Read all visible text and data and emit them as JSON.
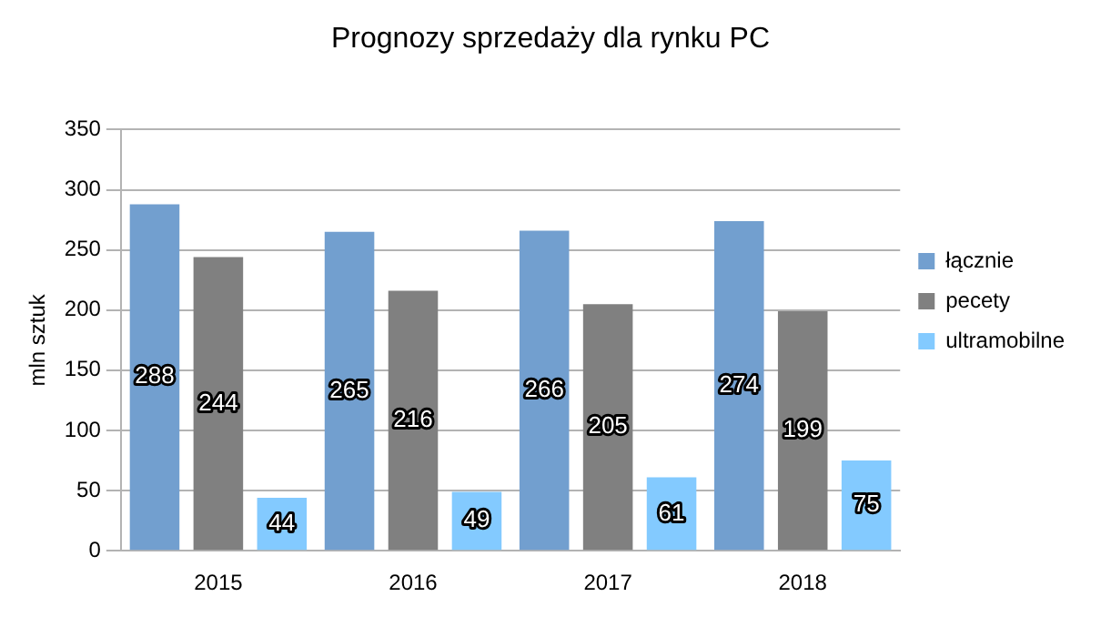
{
  "chart_data": {
    "type": "bar",
    "title": "Prognozy sprzedaży dla rynku PC",
    "ylabel": "mln sztuk",
    "categories": [
      "2015",
      "2016",
      "2017",
      "2018"
    ],
    "series": [
      {
        "name": "łącznie",
        "color": "#729fcf",
        "values": [
          288,
          265,
          266,
          274
        ]
      },
      {
        "name": "pecety",
        "color": "#808080",
        "values": [
          244,
          216,
          205,
          199
        ]
      },
      {
        "name": "ultramobilne",
        "color": "#83caff",
        "values": [
          44,
          49,
          61,
          75
        ]
      }
    ],
    "ylim": [
      0,
      350
    ],
    "yticks": [
      0,
      50,
      100,
      150,
      200,
      250,
      300,
      350
    ],
    "grid": "y",
    "legend": "right",
    "data_labels": true
  }
}
